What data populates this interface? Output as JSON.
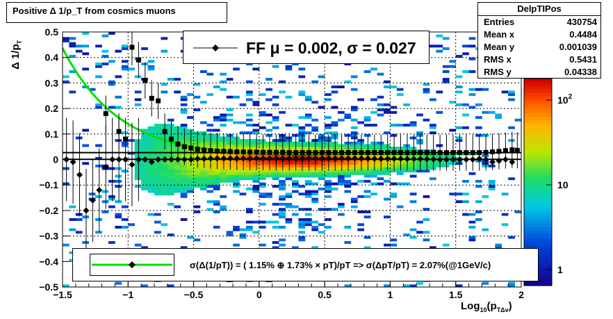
{
  "title": "Positive Δ 1/p_T from cosmics muons",
  "stats": {
    "name": "DelpTIPos",
    "rows": [
      {
        "label": "Entries",
        "value": "430754"
      },
      {
        "label": "Mean x",
        "value": "0.4484"
      },
      {
        "label": "Mean y",
        "value": "0.001039"
      },
      {
        "label": "RMS x",
        "value": "0.5431"
      },
      {
        "label": "RMS y",
        "value": "0.04338"
      }
    ]
  },
  "ff_legend": "FF μ =  0.002, σ =   0.027",
  "res_legend": "σ(Δ(1/pT)) = ( 1.15% ⊕  1.73% × pT)/pT => σ(ΔpT/pT) =  2.07%(@1GeV/c)",
  "colors": {
    "mean_marker": "#000000",
    "fit_curve": "#00e000",
    "band_line": "#000000"
  },
  "chart_data": {
    "type": "heatmap",
    "xlabel": "Log10(pTΔv)",
    "ylabel": "Δ 1/pT",
    "xlim": [
      -1.5,
      2.0
    ],
    "ylim": [
      -0.5,
      0.5
    ],
    "x_ticks": [
      "−1.5",
      "−1",
      "−0.5",
      "0",
      "0.5",
      "1",
      "1.5",
      "2"
    ],
    "y_ticks": [
      "−0.5",
      "−0.4",
      "−0.3",
      "−0.2",
      "−0.1",
      "0",
      "0.1",
      "0.2",
      "0.3",
      "0.4",
      "0.5"
    ],
    "z_scale": "log",
    "z_ticks": [
      "1",
      "10",
      "10^2"
    ],
    "grid": true,
    "means": [
      {
        "x": -1.47,
        "y": 0.0
      },
      {
        "x": -1.42,
        "y": -0.01
      },
      {
        "x": -1.37,
        "y": -0.06
      },
      {
        "x": -1.32,
        "y": -0.2
      },
      {
        "x": -1.27,
        "y": -0.16
      },
      {
        "x": -1.22,
        "y": -0.12
      },
      {
        "x": -1.17,
        "y": -0.03
      },
      {
        "x": -1.12,
        "y": 0.0
      },
      {
        "x": -1.07,
        "y": 0.0
      },
      {
        "x": -1.02,
        "y": 0.0
      },
      {
        "x": -0.97,
        "y": -0.02
      },
      {
        "x": -0.92,
        "y": 0.0
      },
      {
        "x": -0.87,
        "y": 0.0
      },
      {
        "x": -0.82,
        "y": -0.01
      },
      {
        "x": -0.77,
        "y": 0.0
      },
      {
        "x": -0.72,
        "y": 0.0
      },
      {
        "x": -0.67,
        "y": 0.0
      },
      {
        "x": -0.62,
        "y": 0.0
      },
      {
        "x": -0.57,
        "y": 0.0
      },
      {
        "x": -0.52,
        "y": 0.0
      },
      {
        "x": -0.47,
        "y": 0.003
      },
      {
        "x": -0.42,
        "y": 0.003
      },
      {
        "x": -0.37,
        "y": 0.004
      },
      {
        "x": -0.32,
        "y": 0.004
      },
      {
        "x": -0.27,
        "y": 0.004
      },
      {
        "x": -0.22,
        "y": 0.004
      },
      {
        "x": -0.17,
        "y": 0.004
      },
      {
        "x": -0.12,
        "y": 0.004
      },
      {
        "x": -0.07,
        "y": 0.004
      },
      {
        "x": -0.02,
        "y": 0.004
      },
      {
        "x": 0.03,
        "y": 0.004
      },
      {
        "x": 0.08,
        "y": 0.004
      },
      {
        "x": 0.13,
        "y": 0.004
      },
      {
        "x": 0.18,
        "y": 0.004
      },
      {
        "x": 0.23,
        "y": 0.004
      },
      {
        "x": 0.28,
        "y": 0.004
      },
      {
        "x": 0.33,
        "y": 0.004
      },
      {
        "x": 0.38,
        "y": 0.004
      },
      {
        "x": 0.43,
        "y": 0.004
      },
      {
        "x": 0.48,
        "y": 0.004
      },
      {
        "x": 0.53,
        "y": 0.004
      },
      {
        "x": 0.58,
        "y": 0.004
      },
      {
        "x": 0.63,
        "y": 0.004
      },
      {
        "x": 0.68,
        "y": 0.004
      },
      {
        "x": 0.73,
        "y": 0.004
      },
      {
        "x": 0.78,
        "y": 0.004
      },
      {
        "x": 0.83,
        "y": 0.004
      },
      {
        "x": 0.88,
        "y": 0.003
      },
      {
        "x": 0.93,
        "y": 0.003
      },
      {
        "x": 0.98,
        "y": 0.003
      },
      {
        "x": 1.03,
        "y": 0.003
      },
      {
        "x": 1.08,
        "y": 0.003
      },
      {
        "x": 1.13,
        "y": 0.002
      },
      {
        "x": 1.18,
        "y": 0.002
      },
      {
        "x": 1.23,
        "y": 0.002
      },
      {
        "x": 1.28,
        "y": 0.001
      },
      {
        "x": 1.33,
        "y": 0.001
      },
      {
        "x": 1.38,
        "y": 0.0
      },
      {
        "x": 1.43,
        "y": 0.0
      },
      {
        "x": 1.48,
        "y": 0.0
      },
      {
        "x": 1.53,
        "y": 0.0
      },
      {
        "x": 1.58,
        "y": 0.0
      },
      {
        "x": 1.63,
        "y": 0.0
      },
      {
        "x": 1.68,
        "y": 0.003
      },
      {
        "x": 1.73,
        "y": 0.0
      },
      {
        "x": 1.78,
        "y": -0.01
      },
      {
        "x": 1.83,
        "y": -0.005
      },
      {
        "x": 1.88,
        "y": 0.0
      },
      {
        "x": 1.93,
        "y": -0.01
      }
    ],
    "sigmas": [
      {
        "x": -1.17,
        "y": 0.18
      },
      {
        "x": -1.07,
        "y": 0.11
      },
      {
        "x": -1.02,
        "y": 0.08
      },
      {
        "x": -0.97,
        "y": 0.44
      },
      {
        "x": -0.92,
        "y": 0.39
      },
      {
        "x": -0.87,
        "y": 0.31
      },
      {
        "x": -0.82,
        "y": 0.24
      },
      {
        "x": -0.77,
        "y": 0.23
      },
      {
        "x": -0.72,
        "y": 0.11
      },
      {
        "x": -0.67,
        "y": 0.08
      },
      {
        "x": -0.62,
        "y": 0.06
      },
      {
        "x": -0.57,
        "y": 0.05
      },
      {
        "x": -0.52,
        "y": 0.045
      },
      {
        "x": -0.47,
        "y": 0.04
      },
      {
        "x": -0.42,
        "y": 0.037
      },
      {
        "x": -0.37,
        "y": 0.035
      },
      {
        "x": -0.32,
        "y": 0.033
      },
      {
        "x": -0.27,
        "y": 0.032
      },
      {
        "x": -0.22,
        "y": 0.031
      },
      {
        "x": -0.17,
        "y": 0.03
      },
      {
        "x": -0.12,
        "y": 0.03
      },
      {
        "x": -0.07,
        "y": 0.029
      },
      {
        "x": -0.02,
        "y": 0.029
      },
      {
        "x": 0.03,
        "y": 0.028
      },
      {
        "x": 0.08,
        "y": 0.028
      },
      {
        "x": 0.13,
        "y": 0.028
      },
      {
        "x": 0.18,
        "y": 0.028
      },
      {
        "x": 0.23,
        "y": 0.027
      },
      {
        "x": 0.28,
        "y": 0.027
      },
      {
        "x": 0.33,
        "y": 0.027
      },
      {
        "x": 0.38,
        "y": 0.027
      },
      {
        "x": 0.43,
        "y": 0.027
      },
      {
        "x": 0.48,
        "y": 0.027
      },
      {
        "x": 0.53,
        "y": 0.027
      },
      {
        "x": 0.58,
        "y": 0.027
      },
      {
        "x": 0.63,
        "y": 0.027
      },
      {
        "x": 0.68,
        "y": 0.027
      },
      {
        "x": 0.73,
        "y": 0.027
      },
      {
        "x": 0.78,
        "y": 0.027
      },
      {
        "x": 0.83,
        "y": 0.027
      },
      {
        "x": 0.88,
        "y": 0.027
      },
      {
        "x": 0.93,
        "y": 0.027
      },
      {
        "x": 0.98,
        "y": 0.027
      },
      {
        "x": 1.03,
        "y": 0.027
      },
      {
        "x": 1.08,
        "y": 0.027
      },
      {
        "x": 1.13,
        "y": 0.027
      },
      {
        "x": 1.18,
        "y": 0.027
      },
      {
        "x": 1.23,
        "y": 0.027
      },
      {
        "x": 1.28,
        "y": 0.027
      },
      {
        "x": 1.33,
        "y": 0.027
      },
      {
        "x": 1.38,
        "y": 0.027
      },
      {
        "x": 1.43,
        "y": 0.027
      },
      {
        "x": 1.48,
        "y": 0.027
      },
      {
        "x": 1.53,
        "y": 0.027
      },
      {
        "x": 1.58,
        "y": 0.027
      },
      {
        "x": 1.63,
        "y": 0.027
      },
      {
        "x": 1.68,
        "y": 0.027
      },
      {
        "x": 1.73,
        "y": 0.028
      },
      {
        "x": 1.78,
        "y": 0.03
      },
      {
        "x": 1.83,
        "y": 0.032
      },
      {
        "x": 1.88,
        "y": 0.035
      },
      {
        "x": 1.93,
        "y": 0.038
      },
      {
        "x": 1.97,
        "y": 0.036
      }
    ],
    "fit": {
      "formula": "sqrt((0.0115*10^-x)^2 + 0.0173^2)",
      "a": 0.0115,
      "b": 0.0173,
      "x_range": [
        -1.5,
        -0.55
      ]
    },
    "band": {
      "mu": 0.002,
      "sigma": 0.027
    }
  }
}
